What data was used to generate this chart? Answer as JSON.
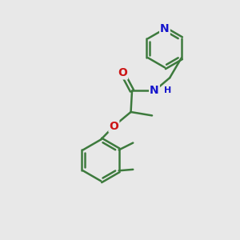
{
  "background_color": "#e8e8e8",
  "bond_color": "#3d7a3d",
  "bond_width": 1.8,
  "atom_colors": {
    "N": "#1515cc",
    "O": "#cc1515",
    "C": "#3d7a3d"
  },
  "font_size_atom": 10,
  "font_size_small": 7.5,
  "figsize": [
    3.0,
    3.0
  ],
  "dpi": 100
}
